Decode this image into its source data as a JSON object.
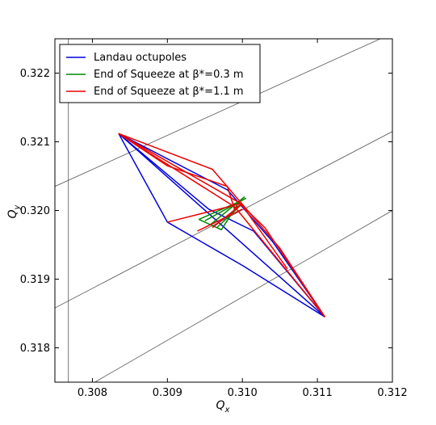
{
  "chart_data": {
    "type": "line",
    "xlabel": "Q",
    "xlabel_sub": "x",
    "ylabel": "Q",
    "ylabel_sub": "y",
    "xlim": [
      0.3075,
      0.312
    ],
    "ylim": [
      0.3175,
      0.3225
    ],
    "x_ticks": [
      0.308,
      0.309,
      0.31,
      0.311,
      0.312
    ],
    "x_tick_labels": [
      "0.308",
      "0.309",
      "0.310",
      "0.311",
      "0.312"
    ],
    "y_ticks": [
      0.318,
      0.319,
      0.32,
      0.321,
      0.322
    ],
    "y_tick_labels": [
      "0.318",
      "0.319",
      "0.320",
      "0.321",
      "0.322"
    ],
    "grid": false,
    "legend_position": "top-left",
    "resonance_lines": {
      "color": "#555555",
      "vertical_x": 0.30768,
      "diagonals": [
        {
          "x": [
            0.3075,
            0.312
          ],
          "y": [
            0.32035,
            0.32258
          ]
        },
        {
          "x": [
            0.3075,
            0.312
          ],
          "y": [
            0.31858,
            0.32115
          ]
        },
        {
          "x": [
            0.308,
            0.312
          ],
          "y": [
            0.31748,
            0.32
          ]
        }
      ]
    },
    "series": [
      {
        "name": "Landau octupoles",
        "color": "#0000dd",
        "segments": [
          {
            "x": [
              0.30835,
              0.3111
            ],
            "y": [
              0.32112,
              0.31845
            ]
          },
          {
            "x": [
              0.30835,
              0.309,
              0.31,
              0.3111
            ],
            "y": [
              0.32112,
              0.31983,
              0.3192,
              0.31845
            ]
          },
          {
            "x": [
              0.30835,
              0.30955,
              0.31015,
              0.3111
            ],
            "y": [
              0.32112,
              0.32002,
              0.3197,
              0.31845
            ]
          },
          {
            "x": [
              0.30835,
              0.3098,
              0.3104,
              0.3111
            ],
            "y": [
              0.32112,
              0.3203,
              0.31955,
              0.31845
            ]
          }
        ]
      },
      {
        "name": "End of Squeeze at β*=0.3 m",
        "color": "#008800",
        "segments": [
          {
            "x": [
              0.30942,
              0.30996,
              0.30972,
              0.30942
            ],
            "y": [
              0.31987,
              0.32013,
              0.31972,
              0.31987
            ]
          },
          {
            "x": [
              0.30958,
              0.31003
            ],
            "y": [
              0.3198,
              0.3202
            ]
          },
          {
            "x": [
              0.3095,
              0.31005
            ],
            "y": [
              0.31985,
              0.32018
            ]
          },
          {
            "x": [
              0.30966,
              0.31
            ],
            "y": [
              0.31975,
              0.3201
            ]
          }
        ]
      },
      {
        "name": "End of Squeeze at β*=1.1 m",
        "color": "#ee0000",
        "segments": [
          {
            "x": [
              0.30835,
              0.3099,
              0.3111
            ],
            "y": [
              0.32112,
              0.32005,
              0.31845
            ]
          },
          {
            "x": [
              0.30835,
              0.30995,
              0.3103,
              0.3111
            ],
            "y": [
              0.32112,
              0.32012,
              0.31975,
              0.31845
            ]
          },
          {
            "x": [
              0.30835,
              0.309,
              0.3098,
              0.3099
            ],
            "y": [
              0.32112,
              0.32065,
              0.32035,
              0.32
            ]
          },
          {
            "x": [
              0.30835,
              0.3096,
              0.3105,
              0.3111
            ],
            "y": [
              0.32112,
              0.3206,
              0.31945,
              0.31845
            ]
          },
          {
            "x": [
              0.309,
              0.30998,
              0.3106
            ],
            "y": [
              0.31983,
              0.3201,
              0.31915
            ]
          },
          {
            "x": [
              0.3094,
              0.31
            ],
            "y": [
              0.3197,
              0.32002
            ]
          },
          {
            "x": [
              0.3096,
              0.31
            ],
            "y": [
              0.31975,
              0.3201
            ]
          },
          {
            "x": [
              0.3099,
              0.31
            ],
            "y": [
              0.32003,
              0.3201
            ]
          }
        ]
      }
    ]
  }
}
